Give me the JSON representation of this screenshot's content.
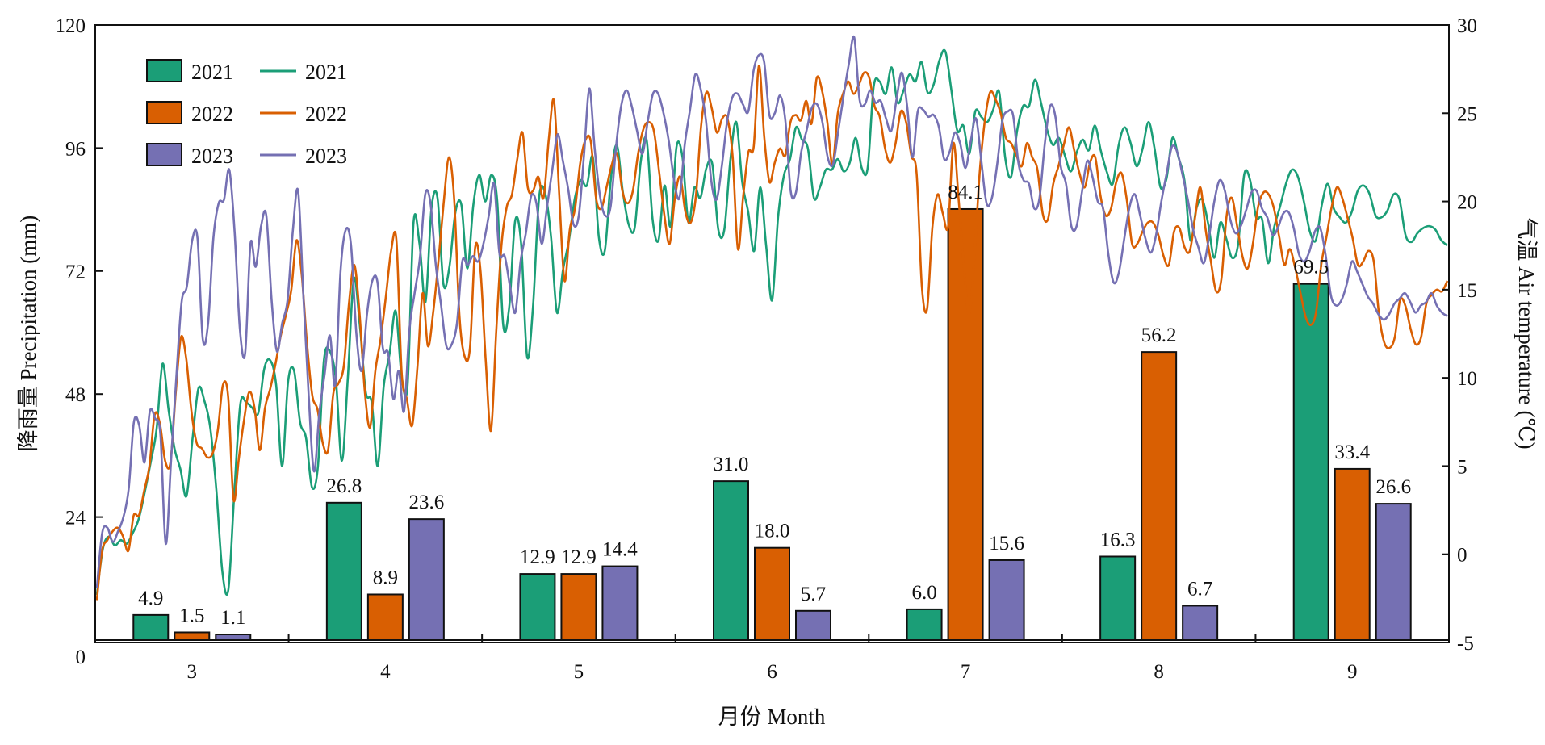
{
  "chart_data": {
    "type": "bar+line",
    "ylabel_left": "降雨量 Precipitation (mm)",
    "ylabel_right": "气温 Air temperature (℃)",
    "xlabel": "月份 Month",
    "ylim_left": [
      0,
      120
    ],
    "yticks_left": [
      "0",
      "24",
      "48",
      "72",
      "96",
      "120"
    ],
    "ylim_right": [
      -5,
      30
    ],
    "yticks_right": [
      "-5",
      "0",
      "5",
      "10",
      "15",
      "20",
      "25",
      "30"
    ],
    "categories": [
      "3",
      "4",
      "5",
      "6",
      "7",
      "8",
      "9"
    ],
    "grid": false,
    "legend_position": "top-left",
    "bar_series": [
      {
        "name": "2021",
        "color": "#1b9e77",
        "values": [
          4.9,
          26.8,
          12.9,
          31.0,
          6.0,
          16.3,
          69.5
        ],
        "labels": [
          "4.9",
          "26.8",
          "12.9",
          "31.0",
          "6.0",
          "16.3",
          "69.5"
        ]
      },
      {
        "name": "2022",
        "color": "#d95f02",
        "values": [
          1.5,
          8.9,
          12.9,
          18.0,
          84.1,
          56.2,
          33.4
        ],
        "labels": [
          "1.5",
          "8.9",
          "12.9",
          "18.0",
          "84.1",
          "56.2",
          "33.4"
        ]
      },
      {
        "name": "2023",
        "color": "#7570b3",
        "values": [
          1.1,
          23.6,
          14.4,
          5.7,
          15.6,
          6.7,
          26.6
        ],
        "labels": [
          "1.1",
          "23.6",
          "14.4",
          "5.7",
          "15.6",
          "6.7",
          "26.6"
        ]
      }
    ],
    "line_series": [
      {
        "name": "2021",
        "color": "#1b9e77",
        "values": [
          -2.3,
          0.3,
          1.0,
          0.5,
          0.8,
          0.6,
          1.2,
          2.0,
          3.5,
          5.2,
          7.1,
          10.8,
          8.2,
          6.0,
          4.8,
          3.3,
          6.5,
          9.4,
          8.7,
          7.1,
          3.6,
          -1.0,
          -2.0,
          3.5,
          8.5,
          8.6,
          8.3,
          8.0,
          10.5,
          11.0,
          9.6,
          5.0,
          9.8,
          10.4,
          7.5,
          6.6,
          3.8,
          5.0,
          11.0,
          11.5,
          9.9,
          5.3,
          10.0,
          15.6,
          13.0,
          9.2,
          8.6,
          5.0,
          9.5,
          11.4,
          13.8,
          10.1,
          9.6,
          18.8,
          17.6,
          14.3,
          19.6,
          20.2,
          15.3,
          16.3,
          19.4,
          19.8,
          16.2,
          19.8,
          21.5,
          20.0,
          21.5,
          20.0,
          13.0,
          14.0,
          18.9,
          17.6,
          11.2,
          14.1,
          20.2,
          20.5,
          18.0,
          13.7,
          16.1,
          17.8,
          20.2,
          21.2,
          20.9,
          22.5,
          18.0,
          17.2,
          21.2,
          23.2,
          20.6,
          18.7,
          18.5,
          22.2,
          23.5,
          19.0,
          17.8,
          20.9,
          18.6,
          23.1,
          22.5,
          18.8,
          20.8,
          20.2,
          21.9,
          22.1,
          18.4,
          18.4,
          22.3,
          24.5,
          21.1,
          19.4,
          17.2,
          20.8,
          17.5,
          14.4,
          19.1,
          21.5,
          22.4,
          24.2,
          23.5,
          23.0,
          20.2,
          20.8,
          21.8,
          21.8,
          22.4,
          21.7,
          22.2,
          23.6,
          21.9,
          21.9,
          26.5,
          26.8,
          26.1,
          27.6,
          25.6,
          26.3,
          27.2,
          26.8,
          27.9,
          26.2,
          26.6,
          28.0,
          28.5,
          26.3,
          24.0,
          24.3,
          22.7,
          25.1,
          24.8,
          24.5,
          25.2,
          26.2,
          22.5,
          21.4,
          24.0,
          25.4,
          25.4,
          26.9,
          25.6,
          24.1,
          23.2,
          23.6,
          22.6,
          21.7,
          22.8,
          23.5,
          22.9,
          24.3,
          22.9,
          21.7,
          21.0,
          23.2,
          24.2,
          23.3,
          22.0,
          23.0,
          24.5,
          23.0,
          20.8,
          21.3,
          23.6,
          22.5,
          21.2,
          17.8,
          19.6,
          20.1,
          18.7,
          16.8,
          18.8,
          17.9,
          16.8,
          17.6,
          21.5,
          21.2,
          19.1,
          19.0,
          16.5,
          18.5,
          19.7,
          21.0,
          21.8,
          21.4,
          20.0,
          18.3,
          17.8,
          19.8,
          21.0,
          19.6,
          19.1,
          18.8,
          19.4,
          20.6,
          20.9,
          20.4,
          19.2,
          19.1,
          19.5,
          20.4,
          20.1,
          18.1,
          17.7,
          18.2,
          18.5,
          18.6,
          18.4,
          17.8,
          17.5
        ]
      },
      {
        "name": "2022",
        "color": "#d95f02",
        "values": [
          -2.6,
          0.2,
          0.8,
          1.3,
          1.5,
          1.0,
          0.2,
          2.2,
          2.2,
          3.6,
          5.0,
          7.9,
          7.4,
          5.3,
          5.2,
          9.1,
          12.3,
          11.1,
          8.1,
          6.3,
          6.0,
          5.5,
          5.7,
          7.0,
          9.6,
          8.9,
          3.1,
          5.4,
          7.6,
          9.2,
          8.3,
          5.9,
          8.3,
          9.4,
          10.8,
          12.4,
          13.6,
          15.0,
          17.8,
          15.8,
          11.9,
          9.0,
          8.2,
          6.3,
          5.9,
          9.1,
          9.7,
          10.7,
          14.3,
          16.4,
          13.6,
          9.2,
          7.2,
          10.4,
          12.2,
          14.6,
          17.2,
          17.8,
          10.3,
          8.8,
          7.3,
          10.6,
          14.8,
          11.8,
          13.7,
          16.6,
          19.9,
          22.5,
          20.1,
          13.5,
          11.2,
          11.7,
          17.4,
          16.1,
          11.0,
          7.0,
          12.6,
          17.5,
          19.7,
          20.4,
          22.4,
          23.9,
          20.8,
          20.6,
          21.4,
          20.2,
          23.5,
          25.7,
          20.3,
          15.5,
          18.4,
          19.6,
          22.2,
          23.5,
          23.4,
          20.2,
          19.6,
          20.8,
          22.1,
          22.7,
          20.6,
          19.9,
          20.6,
          22.7,
          24.1,
          24.5,
          24.0,
          21.7,
          19.2,
          17.6,
          20.2,
          21.4,
          19.4,
          18.8,
          20.3,
          24.3,
          26.2,
          25.3,
          23.9,
          24.7,
          24.7,
          22.5,
          17.3,
          20.3,
          22.8,
          23.1,
          27.7,
          23.7,
          21.1,
          22.2,
          23.0,
          22.6,
          24.5,
          24.9,
          24.6,
          25.7,
          24.4,
          27.0,
          26.3,
          24.5,
          22.1,
          25.0,
          26.1,
          26.8,
          26.1,
          26.6,
          27.3,
          27.0,
          25.4,
          24.8,
          23.0,
          22.2,
          23.3,
          25.1,
          24.5,
          22.6,
          21.6,
          15.2,
          13.9,
          18.5,
          20.4,
          19.3,
          18.6,
          23.3,
          20.1,
          16.3,
          13.6,
          16.9,
          21.6,
          24.6,
          26.2,
          25.8,
          25.0,
          23.6,
          23.3,
          22.6,
          22.0,
          23.3,
          22.5,
          21.8,
          19.3,
          19.0,
          21.0,
          22.0,
          23.2,
          24.2,
          22.9,
          21.6,
          20.8,
          22.2,
          22.5,
          20.3,
          19.2,
          19.6,
          21.1,
          21.6,
          20.1,
          17.6,
          17.6,
          18.3,
          18.8,
          18.8,
          18.1,
          16.9,
          16.4,
          18.3,
          18.5,
          17.4,
          17.2,
          19.1,
          20.8,
          18.4,
          16.6,
          14.9,
          15.6,
          19.2,
          20.2,
          18.6,
          16.9,
          16.2,
          17.6,
          19.7,
          20.5,
          20.4,
          19.6,
          18.0,
          16.4,
          17.3,
          16.3,
          14.9,
          13.5,
          13.0,
          13.7,
          16.4,
          18.0,
          19.7,
          20.8,
          20.2,
          19.1,
          17.9,
          16.4,
          16.6,
          17.2,
          16.6,
          13.6,
          12.0,
          11.7,
          12.3,
          14.4,
          14.1,
          12.8,
          11.9,
          12.3,
          14.2,
          14.7,
          15.0,
          14.9,
          15.5
        ]
      },
      {
        "name": "2023",
        "color": "#7570b3",
        "values": [
          -1.9,
          1.2,
          1.5,
          0.7,
          1.3,
          2.1,
          3.7,
          7.5,
          7.3,
          5.2,
          8.1,
          7.7,
          6.8,
          0.6,
          5.3,
          10.0,
          14.3,
          15.2,
          17.8,
          17.9,
          12.2,
          13.1,
          17.9,
          19.9,
          20.1,
          21.8,
          18.3,
          12.8,
          11.4,
          17.6,
          16.3,
          18.6,
          19.2,
          14.4,
          11.5,
          13.1,
          14.4,
          18.3,
          20.6,
          14.6,
          9.0,
          4.7,
          8.0,
          10.2,
          12.4,
          9.6,
          16.0,
          18.4,
          17.5,
          12.5,
          10.4,
          13.6,
          15.5,
          15.4,
          11.7,
          11.4,
          8.8,
          10.4,
          8.1,
          12.7,
          14.8,
          16.8,
          20.4,
          19.9,
          16.4,
          14.1,
          11.8,
          11.9,
          13.1,
          16.6,
          16.4,
          16.9,
          16.6,
          17.6,
          19.2,
          21.0,
          17.1,
          16.9,
          15.2,
          13.7,
          16.6,
          18.2,
          20.3,
          19.9,
          17.6,
          19.7,
          21.8,
          23.8,
          22.3,
          20.7,
          18.7,
          19.2,
          22.7,
          26.4,
          23.0,
          20.3,
          19.2,
          19.7,
          23.0,
          25.4,
          26.3,
          25.4,
          24.0,
          22.7,
          24.5,
          26.1,
          26.1,
          25.0,
          23.4,
          21.2,
          20.2,
          23.2,
          25.2,
          27.2,
          26.4,
          24.6,
          21.2,
          20.1,
          22.0,
          24.5,
          25.9,
          26.1,
          25.5,
          25.1,
          27.4,
          28.3,
          27.9,
          24.9,
          25.0,
          26.0,
          24.6,
          20.6,
          20.5,
          22.8,
          24.0,
          25.3,
          25.5,
          24.5,
          22.5,
          22.1,
          24.0,
          26.0,
          27.8,
          29.3,
          25.8,
          25.5,
          26.3,
          25.6,
          25.7,
          24.7,
          24.0,
          25.8,
          27.3,
          25.4,
          22.5,
          25.1,
          25.2,
          24.8,
          24.9,
          24.2,
          22.4,
          22.8,
          23.9,
          23.3,
          21.9,
          23.4,
          24.7,
          22.3,
          19.9,
          20.2,
          22.1,
          24.6,
          25.1,
          24.9,
          22.2,
          21.2,
          21.0,
          19.6,
          20.2,
          23.3,
          25.4,
          24.8,
          22.0,
          21.0,
          18.6,
          18.6,
          20.5,
          22.3,
          21.4,
          20.0,
          19.6,
          17.0,
          15.4,
          16.0,
          17.9,
          19.7,
          20.4,
          19.2,
          17.9,
          17.1,
          18.1,
          20.0,
          21.6,
          23.1,
          22.8,
          21.5,
          20.1,
          18.4,
          17.4,
          16.5,
          18.0,
          20.0,
          21.2,
          20.6,
          19.0,
          18.2,
          18.6,
          19.5,
          20.5,
          20.6,
          19.6,
          19.1,
          18.1,
          18.5,
          19.3,
          19.4,
          18.5,
          17.0,
          16.6,
          17.2,
          18.3,
          18.5,
          17.0,
          14.7,
          14.1,
          14.4,
          15.3,
          16.6,
          16.0,
          15.3,
          14.6,
          14.2,
          13.6,
          13.3,
          13.6,
          14.2,
          14.5,
          14.8,
          14.3,
          13.7,
          14.1,
          14.3,
          14.8,
          14.1,
          13.7,
          13.5
        ]
      }
    ]
  }
}
